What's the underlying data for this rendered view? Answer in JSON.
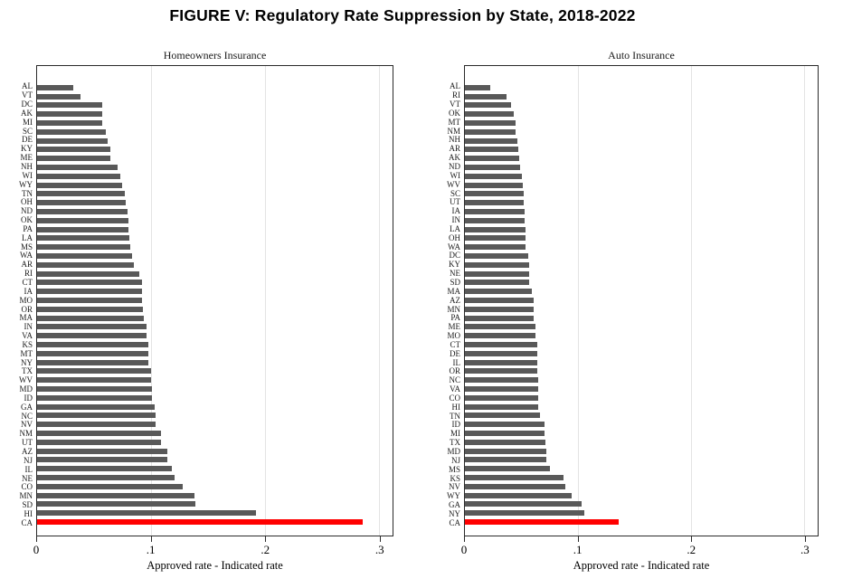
{
  "figure": {
    "title": "FIGURE V: Regulatory Rate Suppression by State, 2018-2022"
  },
  "colors": {
    "bar": "#595959",
    "highlight": "#ff0000",
    "grid": "#e3e3e3",
    "axis": "#2a2a2a"
  },
  "chart_data": [
    {
      "type": "bar",
      "orientation": "horizontal",
      "title": "Homeowners Insurance",
      "xlabel": "Approved rate - Indicated rate",
      "xlim": [
        0,
        0.312
      ],
      "grid": true,
      "tick_labels": [
        "0",
        ".1",
        ".2",
        ".3"
      ],
      "tick_values": [
        0,
        0.1,
        0.2,
        0.3
      ],
      "highlight": {
        "category": "CA",
        "color": "#ff0000"
      },
      "categories": [
        "AL",
        "VT",
        "DC",
        "AK",
        "MI",
        "SC",
        "DE",
        "KY",
        "ME",
        "NH",
        "WI",
        "WY",
        "TN",
        "OH",
        "ND",
        "OK",
        "PA",
        "LA",
        "MS",
        "WA",
        "AR",
        "RI",
        "CT",
        "IA",
        "MO",
        "OR",
        "MA",
        "IN",
        "VA",
        "KS",
        "MT",
        "NY",
        "TX",
        "WV",
        "MD",
        "ID",
        "GA",
        "NC",
        "NV",
        "NM",
        "UT",
        "AZ",
        "NJ",
        "IL",
        "NE",
        "CO",
        "MN",
        "SD",
        "HI",
        "CA"
      ],
      "values": [
        0.032,
        0.038,
        0.057,
        0.057,
        0.057,
        0.06,
        0.062,
        0.064,
        0.064,
        0.071,
        0.073,
        0.075,
        0.077,
        0.078,
        0.079,
        0.08,
        0.08,
        0.081,
        0.082,
        0.083,
        0.085,
        0.09,
        0.092,
        0.092,
        0.092,
        0.093,
        0.094,
        0.096,
        0.096,
        0.098,
        0.098,
        0.098,
        0.1,
        0.1,
        0.101,
        0.101,
        0.103,
        0.104,
        0.104,
        0.109,
        0.109,
        0.114,
        0.114,
        0.118,
        0.121,
        0.128,
        0.138,
        0.139,
        0.192,
        0.286
      ]
    },
    {
      "type": "bar",
      "orientation": "horizontal",
      "title": "Auto Insurance",
      "xlabel": "Approved rate - Indicated rate",
      "xlim": [
        0,
        0.312
      ],
      "grid": true,
      "tick_labels": [
        "0",
        ".1",
        ".2",
        ".3"
      ],
      "tick_values": [
        0,
        0.1,
        0.2,
        0.3
      ],
      "highlight": {
        "category": "CA",
        "color": "#ff0000"
      },
      "categories": [
        "AL",
        "RI",
        "VT",
        "OK",
        "MT",
        "NM",
        "NH",
        "AR",
        "AK",
        "ND",
        "WI",
        "WV",
        "SC",
        "UT",
        "IA",
        "IN",
        "LA",
        "OH",
        "WA",
        "DC",
        "KY",
        "NE",
        "SD",
        "MA",
        "AZ",
        "MN",
        "PA",
        "ME",
        "MO",
        "CT",
        "DE",
        "IL",
        "OR",
        "NC",
        "VA",
        "CO",
        "HI",
        "TN",
        "ID",
        "MI",
        "TX",
        "MD",
        "NJ",
        "MS",
        "KS",
        "NV",
        "WY",
        "GA",
        "NY",
        "CA"
      ],
      "values": [
        0.022,
        0.037,
        0.041,
        0.043,
        0.045,
        0.045,
        0.046,
        0.047,
        0.048,
        0.049,
        0.05,
        0.051,
        0.052,
        0.052,
        0.053,
        0.053,
        0.054,
        0.054,
        0.054,
        0.056,
        0.057,
        0.057,
        0.057,
        0.059,
        0.061,
        0.061,
        0.061,
        0.062,
        0.062,
        0.064,
        0.064,
        0.064,
        0.064,
        0.065,
        0.065,
        0.065,
        0.065,
        0.066,
        0.07,
        0.07,
        0.071,
        0.072,
        0.072,
        0.075,
        0.087,
        0.089,
        0.094,
        0.103,
        0.106,
        0.136
      ]
    }
  ]
}
